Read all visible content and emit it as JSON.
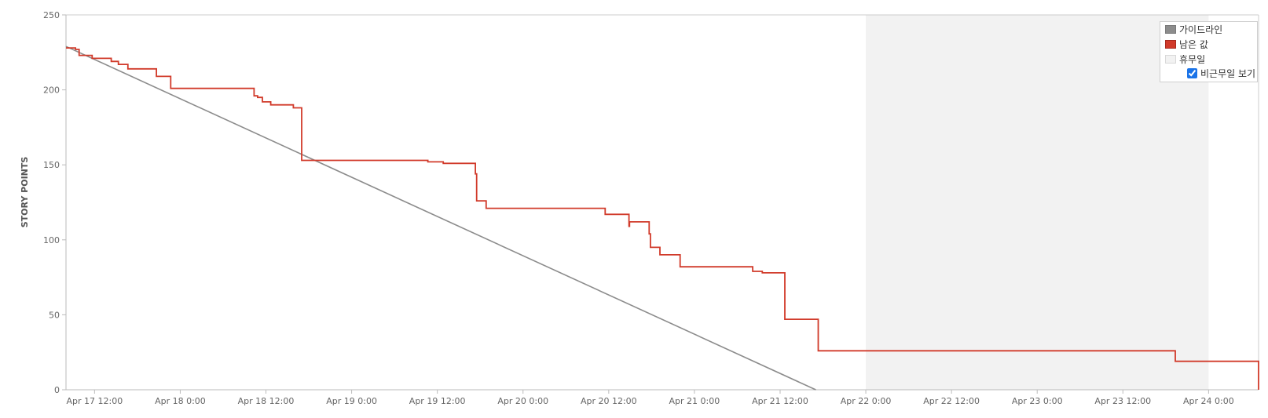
{
  "chart_data": {
    "type": "line",
    "ylabel": "STORY POINTS",
    "ylim": [
      0,
      250
    ],
    "yticks": [
      0,
      50,
      100,
      150,
      200,
      250
    ],
    "xlim": [
      "2025-04-17T08:00",
      "2025-04-24T07:00"
    ],
    "xticks": [
      {
        "at": "2025-04-17T12:00",
        "label": "Apr 17 12:00"
      },
      {
        "at": "2025-04-18T00:00",
        "label": "Apr 18 0:00"
      },
      {
        "at": "2025-04-18T12:00",
        "label": "Apr 18 12:00"
      },
      {
        "at": "2025-04-19T00:00",
        "label": "Apr 19 0:00"
      },
      {
        "at": "2025-04-19T12:00",
        "label": "Apr 19 12:00"
      },
      {
        "at": "2025-04-20T00:00",
        "label": "Apr 20 0:00"
      },
      {
        "at": "2025-04-20T12:00",
        "label": "Apr 20 12:00"
      },
      {
        "at": "2025-04-21T00:00",
        "label": "Apr 21 0:00"
      },
      {
        "at": "2025-04-21T12:00",
        "label": "Apr 21 12:00"
      },
      {
        "at": "2025-04-22T00:00",
        "label": "Apr 22 0:00"
      },
      {
        "at": "2025-04-22T12:00",
        "label": "Apr 22 12:00"
      },
      {
        "at": "2025-04-23T00:00",
        "label": "Apr 23 0:00"
      },
      {
        "at": "2025-04-23T12:00",
        "label": "Apr 23 12:00"
      },
      {
        "at": "2025-04-24T00:00",
        "label": "Apr 24 0:00"
      }
    ],
    "holiday_band": {
      "from": "2025-04-22T00:00",
      "to": "2025-04-24T00:00"
    },
    "series": [
      {
        "name": "가이드라인",
        "color": "#8c8c8c",
        "points": [
          {
            "x": "2025-04-17T08:00",
            "y": 229
          },
          {
            "x": "2025-04-21T17:00",
            "y": 0
          }
        ]
      },
      {
        "name": "남은 값",
        "color": "#d13a2a",
        "step": true,
        "points": [
          {
            "x": "2025-04-17T08:00",
            "y": 228
          },
          {
            "x": "2025-04-17T09:20",
            "y": 227
          },
          {
            "x": "2025-04-17T09:50",
            "y": 223
          },
          {
            "x": "2025-04-17T11:40",
            "y": 221
          },
          {
            "x": "2025-04-17T14:20",
            "y": 219
          },
          {
            "x": "2025-04-17T15:20",
            "y": 217
          },
          {
            "x": "2025-04-17T16:40",
            "y": 214
          },
          {
            "x": "2025-04-17T20:40",
            "y": 209
          },
          {
            "x": "2025-04-17T22:40",
            "y": 201
          },
          {
            "x": "2025-04-18T10:20",
            "y": 196
          },
          {
            "x": "2025-04-18T10:50",
            "y": 195
          },
          {
            "x": "2025-04-18T11:30",
            "y": 192
          },
          {
            "x": "2025-04-18T12:40",
            "y": 190
          },
          {
            "x": "2025-04-18T15:50",
            "y": 188
          },
          {
            "x": "2025-04-18T17:00",
            "y": 153
          },
          {
            "x": "2025-04-19T10:40",
            "y": 152
          },
          {
            "x": "2025-04-19T12:50",
            "y": 151
          },
          {
            "x": "2025-04-19T17:20",
            "y": 144
          },
          {
            "x": "2025-04-19T17:30",
            "y": 126
          },
          {
            "x": "2025-04-19T18:50",
            "y": 121
          },
          {
            "x": "2025-04-20T11:30",
            "y": 117
          },
          {
            "x": "2025-04-20T14:50",
            "y": 109
          },
          {
            "x": "2025-04-20T14:55",
            "y": 112
          },
          {
            "x": "2025-04-20T17:40",
            "y": 104
          },
          {
            "x": "2025-04-20T17:50",
            "y": 95
          },
          {
            "x": "2025-04-20T19:10",
            "y": 90
          },
          {
            "x": "2025-04-20T22:00",
            "y": 82
          },
          {
            "x": "2025-04-21T08:10",
            "y": 79
          },
          {
            "x": "2025-04-21T09:30",
            "y": 78
          },
          {
            "x": "2025-04-21T12:40",
            "y": 47
          },
          {
            "x": "2025-04-21T17:20",
            "y": 26
          },
          {
            "x": "2025-04-23T19:20",
            "y": 19
          },
          {
            "x": "2025-04-24T07:00",
            "y": 19
          },
          {
            "x": "2025-04-24T07:00",
            "y": 0
          }
        ]
      }
    ],
    "legend": {
      "position": "top-right",
      "items": [
        {
          "label": "가이드라인",
          "color": "#8c8c8c"
        },
        {
          "label": "남은 값",
          "color": "#d13a2a"
        },
        {
          "label": "휴무일",
          "color": "#f2f2f2"
        }
      ],
      "checkbox": {
        "label": "비근무일 보기",
        "checked": true
      }
    },
    "holiday_color": "#f2f2f2",
    "grid": false
  }
}
